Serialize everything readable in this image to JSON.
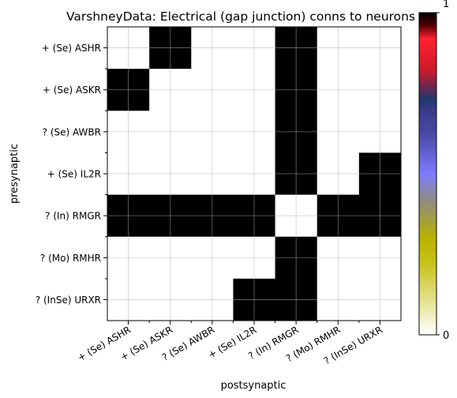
{
  "chart_data": {
    "type": "heatmap",
    "title": "VarshneyData: Electrical (gap junction) conns to neurons",
    "xlabel": "postsynaptic",
    "ylabel": "presynaptic",
    "rows": [
      "+ (Se) ASHR",
      "+ (Se) ASKR",
      "? (Se) AWBR",
      "+ (Se) IL2R",
      "? (In) RMGR",
      "? (Mo) RMHR",
      "? (InSe) URXR"
    ],
    "columns": [
      "+ (Se) ASHR",
      "+ (Se) ASKR",
      "? (Se) AWBR",
      "+ (Se) IL2R",
      "? (In) RMGR",
      "? (Mo) RMHR",
      "? (InSe) URXR"
    ],
    "values": [
      [
        0,
        1,
        0,
        0,
        1,
        0,
        0
      ],
      [
        1,
        0,
        0,
        0,
        1,
        0,
        0
      ],
      [
        0,
        0,
        0,
        0,
        1,
        0,
        0
      ],
      [
        0,
        0,
        0,
        0,
        1,
        0,
        1
      ],
      [
        1,
        1,
        1,
        1,
        0,
        1,
        1
      ],
      [
        0,
        0,
        0,
        0,
        1,
        0,
        0
      ],
      [
        0,
        0,
        0,
        1,
        1,
        0,
        0
      ]
    ],
    "colorbar": {
      "min": 0,
      "max": 1,
      "ticks": [
        "0",
        "1"
      ],
      "colormap": "gist_stern_r-like",
      "on_color": "#000000",
      "off_color": "#ffffff"
    },
    "grid": true
  }
}
